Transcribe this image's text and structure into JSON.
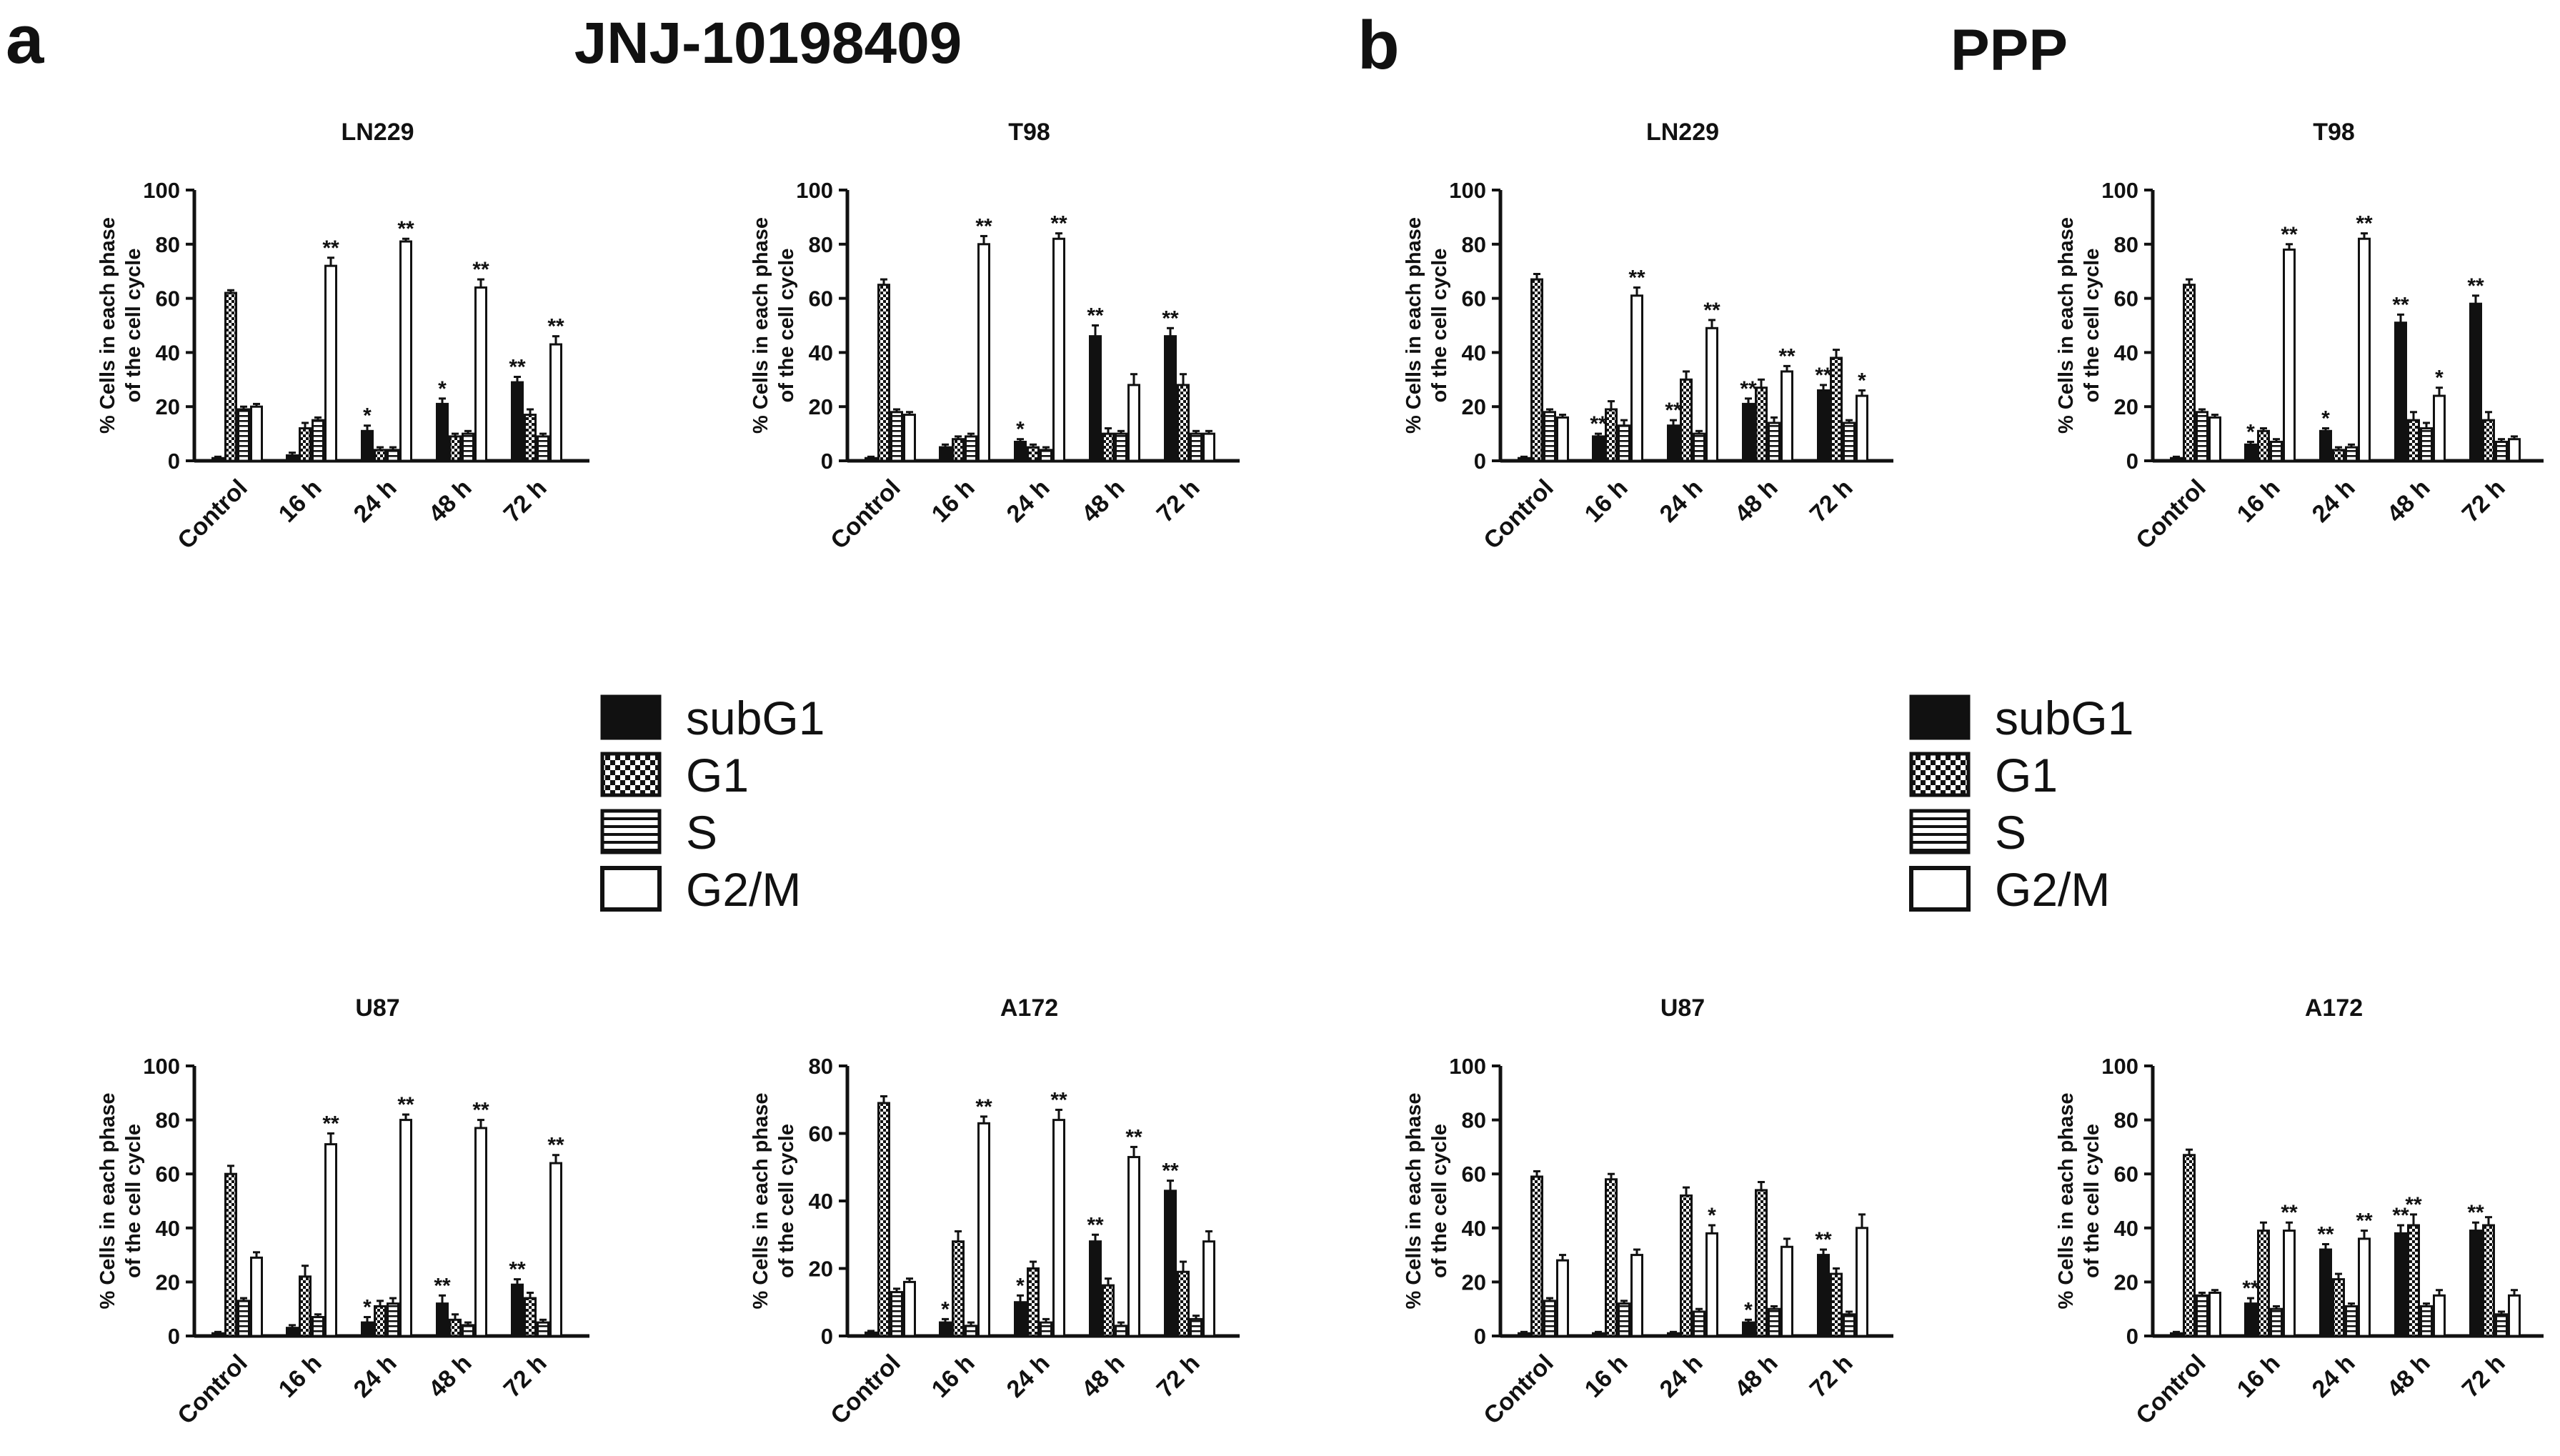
{
  "panels": [
    {
      "letter": "a",
      "title": "JNJ-10198409"
    },
    {
      "letter": "b",
      "title": "PPP"
    }
  ],
  "legend": [
    {
      "label": "subG1",
      "pattern": "solid"
    },
    {
      "label": "G1",
      "pattern": "checker"
    },
    {
      "label": "S",
      "pattern": "hlines"
    },
    {
      "label": "G2/M",
      "pattern": "open"
    }
  ],
  "colors": {
    "ink": "#111111",
    "background": "#ffffff"
  },
  "chart_data": [
    {
      "panel": "a",
      "type": "bar",
      "title": "LN229",
      "ylabel": [
        "% Cells in each phase",
        "of the cell cycle"
      ],
      "categories": [
        "Control",
        "16 h",
        "24 h",
        "48 h",
        "72 h"
      ],
      "ylim": [
        0,
        100
      ],
      "yticks": [
        0,
        20,
        40,
        60,
        80,
        100
      ],
      "series": [
        {
          "name": "subG1",
          "values": [
            1,
            2,
            11,
            21,
            29
          ],
          "errors": [
            0.5,
            1,
            2,
            2,
            2
          ]
        },
        {
          "name": "G1",
          "values": [
            62,
            12,
            4,
            9,
            17
          ],
          "errors": [
            1,
            2,
            1,
            1,
            2
          ]
        },
        {
          "name": "S",
          "values": [
            19,
            15,
            4,
            10,
            9
          ],
          "errors": [
            1,
            1,
            1,
            1,
            1
          ]
        },
        {
          "name": "G2/M",
          "values": [
            20,
            72,
            81,
            64,
            43
          ],
          "errors": [
            1,
            3,
            1,
            3,
            3
          ]
        }
      ],
      "significance": [
        [
          "",
          "",
          "",
          ""
        ],
        [
          "",
          "",
          "",
          "**"
        ],
        [
          "*",
          "",
          "",
          "**"
        ],
        [
          "*",
          "",
          "",
          "**"
        ],
        [
          "**",
          "",
          "",
          "**"
        ]
      ]
    },
    {
      "panel": "a",
      "type": "bar",
      "title": "T98",
      "ylabel": [
        "% Cells in each phase",
        "of the cell cycle"
      ],
      "categories": [
        "Control",
        "16 h",
        "24 h",
        "48 h",
        "72 h"
      ],
      "ylim": [
        0,
        100
      ],
      "yticks": [
        0,
        20,
        40,
        60,
        80,
        100
      ],
      "series": [
        {
          "name": "subG1",
          "values": [
            1,
            5,
            7,
            46,
            46
          ],
          "errors": [
            0.5,
            1,
            1,
            4,
            3
          ]
        },
        {
          "name": "G1",
          "values": [
            65,
            8,
            5,
            10,
            28
          ],
          "errors": [
            2,
            1,
            1,
            2,
            4
          ]
        },
        {
          "name": "S",
          "values": [
            18,
            9,
            4,
            10,
            10
          ],
          "errors": [
            1,
            1,
            1,
            1,
            1
          ]
        },
        {
          "name": "G2/M",
          "values": [
            17,
            80,
            82,
            28,
            10
          ],
          "errors": [
            1,
            3,
            2,
            4,
            1
          ]
        }
      ],
      "significance": [
        [
          "",
          "",
          "",
          ""
        ],
        [
          "",
          "",
          "",
          "**"
        ],
        [
          "*",
          "",
          "",
          "**"
        ],
        [
          "**",
          "",
          "",
          ""
        ],
        [
          "**",
          "",
          "",
          ""
        ]
      ]
    },
    {
      "panel": "b",
      "type": "bar",
      "title": "LN229",
      "ylabel": [
        "% Cells in each phase",
        "of the cell cycle"
      ],
      "categories": [
        "Control",
        "16 h",
        "24 h",
        "48 h",
        "72 h"
      ],
      "ylim": [
        0,
        100
      ],
      "yticks": [
        0,
        20,
        40,
        60,
        80,
        100
      ],
      "series": [
        {
          "name": "subG1",
          "values": [
            1,
            9,
            13,
            21,
            26
          ],
          "errors": [
            0.5,
            1,
            2,
            2,
            2
          ]
        },
        {
          "name": "G1",
          "values": [
            67,
            19,
            30,
            27,
            38
          ],
          "errors": [
            2,
            3,
            3,
            3,
            3
          ]
        },
        {
          "name": "S",
          "values": [
            18,
            13,
            10,
            14,
            14
          ],
          "errors": [
            1,
            2,
            1,
            2,
            1
          ]
        },
        {
          "name": "G2/M",
          "values": [
            16,
            61,
            49,
            33,
            24
          ],
          "errors": [
            1,
            3,
            3,
            2,
            2
          ]
        }
      ],
      "significance": [
        [
          "",
          "",
          "",
          ""
        ],
        [
          "**",
          "",
          "",
          "**"
        ],
        [
          "**",
          "",
          "",
          "**"
        ],
        [
          "**",
          "",
          "",
          "**"
        ],
        [
          "**",
          "",
          "",
          "*"
        ]
      ]
    },
    {
      "panel": "b",
      "type": "bar",
      "title": "T98",
      "ylabel": [
        "% Cells in each phase",
        "of the cell cycle"
      ],
      "categories": [
        "Control",
        "16 h",
        "24 h",
        "48 h",
        "72 h"
      ],
      "ylim": [
        0,
        100
      ],
      "yticks": [
        0,
        20,
        40,
        60,
        80,
        100
      ],
      "series": [
        {
          "name": "subG1",
          "values": [
            1,
            6,
            11,
            51,
            58
          ],
          "errors": [
            0.5,
            1,
            1,
            3,
            3
          ]
        },
        {
          "name": "G1",
          "values": [
            65,
            11,
            4,
            15,
            15
          ],
          "errors": [
            2,
            1,
            1,
            3,
            3
          ]
        },
        {
          "name": "S",
          "values": [
            18,
            7,
            5,
            12,
            7
          ],
          "errors": [
            1,
            1,
            1,
            2,
            1
          ]
        },
        {
          "name": "G2/M",
          "values": [
            16,
            78,
            82,
            24,
            8
          ],
          "errors": [
            1,
            2,
            2,
            3,
            1
          ]
        }
      ],
      "significance": [
        [
          "",
          "",
          "",
          ""
        ],
        [
          "*",
          "",
          "",
          "**"
        ],
        [
          "*",
          "",
          "",
          "**"
        ],
        [
          "**",
          "",
          "",
          "*"
        ],
        [
          "**",
          "",
          "",
          ""
        ]
      ]
    },
    {
      "panel": "a",
      "type": "bar",
      "title": "U87",
      "ylabel": [
        "% Cells in each phase",
        "of the cell cycle"
      ],
      "categories": [
        "Control",
        "16 h",
        "24 h",
        "48 h",
        "72 h"
      ],
      "ylim": [
        0,
        100
      ],
      "yticks": [
        0,
        20,
        40,
        60,
        80,
        100
      ],
      "series": [
        {
          "name": "subG1",
          "values": [
            1,
            3,
            5,
            12,
            19
          ],
          "errors": [
            0.5,
            1,
            2,
            3,
            2
          ]
        },
        {
          "name": "G1",
          "values": [
            60,
            22,
            11,
            6,
            14
          ],
          "errors": [
            3,
            4,
            2,
            2,
            2
          ]
        },
        {
          "name": "S",
          "values": [
            13,
            7,
            12,
            4,
            5
          ],
          "errors": [
            1,
            1,
            2,
            1,
            1
          ]
        },
        {
          "name": "G2/M",
          "values": [
            29,
            71,
            80,
            77,
            64
          ],
          "errors": [
            2,
            4,
            2,
            3,
            3
          ]
        }
      ],
      "significance": [
        [
          "",
          "",
          "",
          ""
        ],
        [
          "",
          "",
          "",
          "**"
        ],
        [
          "*",
          "",
          "",
          "**"
        ],
        [
          "**",
          "",
          "",
          "**"
        ],
        [
          "**",
          "",
          "",
          "**"
        ]
      ]
    },
    {
      "panel": "a",
      "type": "bar",
      "title": "A172",
      "ylabel": [
        "% Cells in each phase",
        "of the cell cycle"
      ],
      "categories": [
        "Control",
        "16 h",
        "24 h",
        "48 h",
        "72 h"
      ],
      "ylim": [
        0,
        80
      ],
      "yticks": [
        0,
        20,
        40,
        60,
        80
      ],
      "series": [
        {
          "name": "subG1",
          "values": [
            1,
            4,
            10,
            28,
            43
          ],
          "errors": [
            0.5,
            1,
            2,
            2,
            3
          ]
        },
        {
          "name": "G1",
          "values": [
            69,
            28,
            20,
            15,
            19
          ],
          "errors": [
            2,
            3,
            2,
            2,
            3
          ]
        },
        {
          "name": "S",
          "values": [
            13,
            3,
            4,
            3,
            5
          ],
          "errors": [
            1,
            1,
            1,
            1,
            1
          ]
        },
        {
          "name": "G2/M",
          "values": [
            16,
            63,
            64,
            53,
            28
          ],
          "errors": [
            1,
            2,
            3,
            3,
            3
          ]
        }
      ],
      "significance": [
        [
          "",
          "",
          "",
          ""
        ],
        [
          "*",
          "",
          "",
          "**"
        ],
        [
          "*",
          "",
          "",
          "**"
        ],
        [
          "**",
          "",
          "",
          "**"
        ],
        [
          "**",
          "",
          "",
          ""
        ]
      ]
    },
    {
      "panel": "b",
      "type": "bar",
      "title": "U87",
      "ylabel": [
        "% Cells in each phase",
        "of the cell cycle"
      ],
      "categories": [
        "Control",
        "16 h",
        "24 h",
        "48 h",
        "72 h"
      ],
      "ylim": [
        0,
        100
      ],
      "yticks": [
        0,
        20,
        40,
        60,
        80,
        100
      ],
      "series": [
        {
          "name": "subG1",
          "values": [
            1,
            1,
            1,
            5,
            30
          ],
          "errors": [
            0.5,
            0.5,
            0.5,
            1,
            2
          ]
        },
        {
          "name": "G1",
          "values": [
            59,
            58,
            52,
            54,
            23
          ],
          "errors": [
            2,
            2,
            3,
            3,
            2
          ]
        },
        {
          "name": "S",
          "values": [
            13,
            12,
            9,
            10,
            8
          ],
          "errors": [
            1,
            1,
            1,
            1,
            1
          ]
        },
        {
          "name": "G2/M",
          "values": [
            28,
            30,
            38,
            33,
            40
          ],
          "errors": [
            2,
            2,
            3,
            3,
            5
          ]
        }
      ],
      "significance": [
        [
          "",
          "",
          "",
          ""
        ],
        [
          "",
          "",
          "",
          ""
        ],
        [
          "",
          "",
          "",
          "*"
        ],
        [
          "*",
          "",
          "",
          ""
        ],
        [
          "**",
          "",
          "",
          ""
        ]
      ]
    },
    {
      "panel": "b",
      "type": "bar",
      "title": "A172",
      "ylabel": [
        "% Cells in each phase",
        "of the cell cycle"
      ],
      "categories": [
        "Control",
        "16 h",
        "24 h",
        "48 h",
        "72 h"
      ],
      "ylim": [
        0,
        100
      ],
      "yticks": [
        0,
        20,
        40,
        60,
        80,
        100
      ],
      "series": [
        {
          "name": "subG1",
          "values": [
            1,
            12,
            32,
            38,
            39
          ],
          "errors": [
            0.5,
            2,
            2,
            3,
            3
          ]
        },
        {
          "name": "G1",
          "values": [
            67,
            39,
            21,
            41,
            41
          ],
          "errors": [
            2,
            3,
            2,
            4,
            3
          ]
        },
        {
          "name": "S",
          "values": [
            15,
            10,
            11,
            11,
            8
          ],
          "errors": [
            1,
            1,
            1,
            1,
            1
          ]
        },
        {
          "name": "G2/M",
          "values": [
            16,
            39,
            36,
            15,
            15
          ],
          "errors": [
            1,
            3,
            3,
            2,
            2
          ]
        }
      ],
      "significance": [
        [
          "",
          "",
          "",
          ""
        ],
        [
          "**",
          "",
          "",
          "**"
        ],
        [
          "**",
          "",
          "",
          "**"
        ],
        [
          "**",
          "**",
          "",
          ""
        ],
        [
          "**",
          "",
          "",
          ""
        ]
      ]
    }
  ]
}
